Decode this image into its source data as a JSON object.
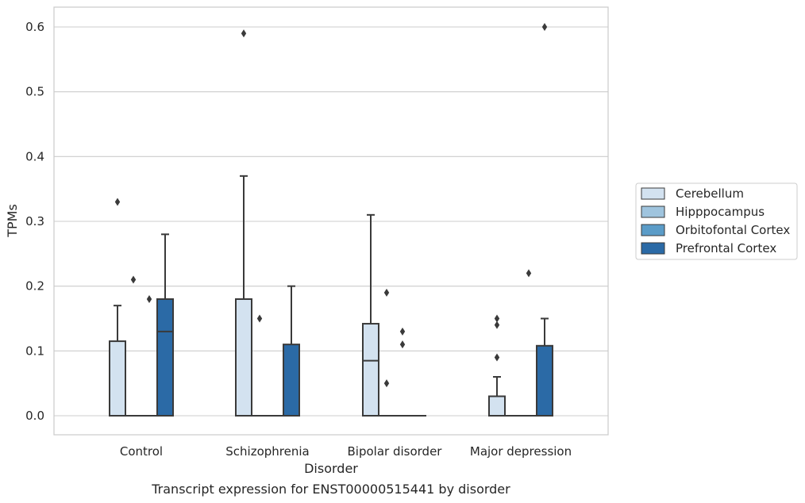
{
  "caption": "Transcript expression for ENST00000515441 by disorder",
  "chart_data": {
    "type": "box",
    "title": "",
    "xlabel": "Disorder",
    "ylabel": "TPMs",
    "ylim": [
      -0.03,
      0.63
    ],
    "yticks": [
      "0.0",
      "0.1",
      "0.2",
      "0.3",
      "0.4",
      "0.5",
      "0.6"
    ],
    "ytick_values": [
      0.0,
      0.1,
      0.2,
      0.3,
      0.4,
      0.5,
      0.6
    ],
    "grid": "horizontal",
    "legend_position": "right",
    "categories": [
      "Control",
      "Schizophrenia",
      "Bipolar disorder",
      "Major depression"
    ],
    "series": [
      {
        "name": "Cerebellum",
        "color": "#d3e2f0",
        "boxes": [
          {
            "whisker_low": 0.0,
            "q1": 0.0,
            "median": 0.0,
            "q3": 0.115,
            "whisker_high": 0.17,
            "outliers": [
              0.33
            ]
          },
          {
            "whisker_low": 0.0,
            "q1": 0.0,
            "median": 0.0,
            "q3": 0.18,
            "whisker_high": 0.37,
            "outliers": [
              0.59
            ]
          },
          {
            "whisker_low": 0.0,
            "q1": 0.0,
            "median": 0.085,
            "q3": 0.142,
            "whisker_high": 0.31,
            "outliers": []
          },
          {
            "whisker_low": 0.0,
            "q1": 0.0,
            "median": 0.0,
            "q3": 0.03,
            "whisker_high": 0.06,
            "outliers": [
              0.09,
              0.14,
              0.15
            ]
          }
        ]
      },
      {
        "name": "Hipppocampus",
        "color": "#9fc4de",
        "boxes": [
          {
            "whisker_low": 0.0,
            "q1": 0.0,
            "median": 0.0,
            "q3": 0.0,
            "whisker_high": 0.0,
            "outliers": [
              0.21
            ]
          },
          {
            "whisker_low": 0.0,
            "q1": 0.0,
            "median": 0.0,
            "q3": 0.0,
            "whisker_high": 0.0,
            "outliers": [
              0.15
            ]
          },
          {
            "whisker_low": 0.0,
            "q1": 0.0,
            "median": 0.0,
            "q3": 0.0,
            "whisker_high": 0.0,
            "outliers": [
              0.05,
              0.19
            ]
          },
          {
            "whisker_low": 0.0,
            "q1": 0.0,
            "median": 0.0,
            "q3": 0.0,
            "whisker_high": 0.0,
            "outliers": []
          }
        ]
      },
      {
        "name": "Orbitofontal Cortex",
        "color": "#5b9cc8",
        "boxes": [
          {
            "whisker_low": 0.0,
            "q1": 0.0,
            "median": 0.0,
            "q3": 0.0,
            "whisker_high": 0.0,
            "outliers": [
              0.18
            ]
          },
          {
            "whisker_low": 0.0,
            "q1": 0.0,
            "median": 0.0,
            "q3": 0.0,
            "whisker_high": 0.0,
            "outliers": []
          },
          {
            "whisker_low": 0.0,
            "q1": 0.0,
            "median": 0.0,
            "q3": 0.0,
            "whisker_high": 0.0,
            "outliers": [
              0.11,
              0.13
            ]
          },
          {
            "whisker_low": 0.0,
            "q1": 0.0,
            "median": 0.0,
            "q3": 0.0,
            "whisker_high": 0.0,
            "outliers": [
              0.22
            ]
          }
        ]
      },
      {
        "name": "Prefrontal Cortex",
        "color": "#2b6aa6",
        "boxes": [
          {
            "whisker_low": 0.0,
            "q1": 0.0,
            "median": 0.13,
            "q3": 0.18,
            "whisker_high": 0.28,
            "outliers": []
          },
          {
            "whisker_low": 0.0,
            "q1": 0.0,
            "median": 0.0,
            "q3": 0.11,
            "whisker_high": 0.2,
            "outliers": []
          },
          {
            "whisker_low": 0.0,
            "q1": 0.0,
            "median": 0.0,
            "q3": 0.0,
            "whisker_high": 0.0,
            "outliers": []
          },
          {
            "whisker_low": 0.0,
            "q1": 0.0,
            "median": 0.0,
            "q3": 0.108,
            "whisker_high": 0.15,
            "outliers": [
              0.6
            ]
          }
        ]
      }
    ]
  }
}
